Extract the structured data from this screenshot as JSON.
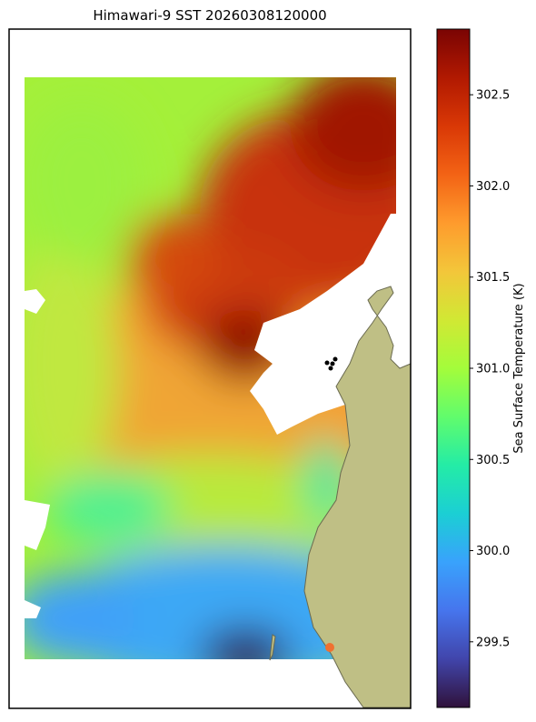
{
  "chart_data": {
    "type": "map",
    "title": "Himawari-9 SST 20260308120000",
    "colorbar": {
      "label": "Sea Surface Temperature (K)",
      "colormap": "turbo",
      "lim": [
        299.14,
        302.86
      ],
      "ticks": [
        299.5,
        {
          "value": 300,
          "label": "300.0"
        },
        300.5,
        {
          "value": 301,
          "label": "301.0"
        },
        301.5,
        {
          "value": 302,
          "label": "302.0"
        },
        302.5
      ]
    }
  }
}
